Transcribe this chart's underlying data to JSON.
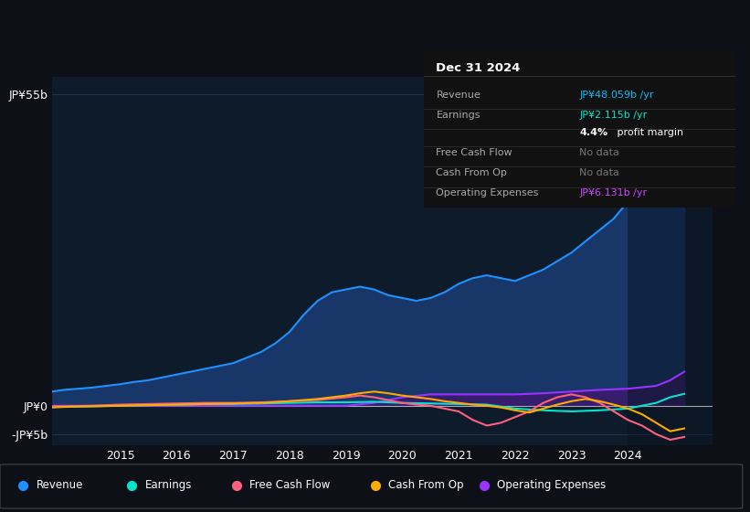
{
  "background_color": "#0d1117",
  "plot_bg_color": "#0d1b2a",
  "ylim": [
    -7,
    58
  ],
  "yticks": [
    -5,
    0,
    55
  ],
  "ytick_labels": [
    "-JP¥5b",
    "JP¥0",
    "JP¥55b"
  ],
  "xticks": [
    2015,
    2016,
    2017,
    2018,
    2019,
    2020,
    2021,
    2022,
    2023,
    2024
  ],
  "xlim": [
    2013.8,
    2025.5
  ],
  "info_panel": {
    "title": "Dec 31 2024",
    "rows": [
      {
        "label": "Revenue",
        "value": "JP¥48.059b /yr",
        "value_color": "#00bfff",
        "gray": false,
        "bold_prefix": null
      },
      {
        "label": "Earnings",
        "value": "JP¥2.115b /yr",
        "value_color": "#00e5cc",
        "gray": false,
        "bold_prefix": null
      },
      {
        "label": "",
        "value": " profit margin",
        "value_color": "#ffffff",
        "gray": false,
        "bold_prefix": "4.4%"
      },
      {
        "label": "Free Cash Flow",
        "value": "No data",
        "value_color": "#777777",
        "gray": true,
        "bold_prefix": null
      },
      {
        "label": "Cash From Op",
        "value": "No data",
        "value_color": "#777777",
        "gray": true,
        "bold_prefix": null
      },
      {
        "label": "Operating Expenses",
        "value": "JP¥6.131b /yr",
        "value_color": "#cc44ff",
        "gray": false,
        "bold_prefix": null
      }
    ]
  },
  "series": {
    "revenue": {
      "color": "#1e90ff",
      "fill_color": "#1a3a6e",
      "label": "Revenue",
      "x": [
        2013.8,
        2014.0,
        2014.25,
        2014.5,
        2014.75,
        2015.0,
        2015.25,
        2015.5,
        2015.75,
        2016.0,
        2016.25,
        2016.5,
        2016.75,
        2017.0,
        2017.25,
        2017.5,
        2017.75,
        2018.0,
        2018.25,
        2018.5,
        2018.75,
        2019.0,
        2019.25,
        2019.5,
        2019.75,
        2020.0,
        2020.25,
        2020.5,
        2020.75,
        2021.0,
        2021.25,
        2021.5,
        2021.75,
        2022.0,
        2022.25,
        2022.5,
        2022.75,
        2023.0,
        2023.25,
        2023.5,
        2023.75,
        2024.0,
        2024.25,
        2024.5,
        2024.75,
        2025.0
      ],
      "y": [
        2.5,
        2.8,
        3.0,
        3.2,
        3.5,
        3.8,
        4.2,
        4.5,
        5.0,
        5.5,
        6.0,
        6.5,
        7.0,
        7.5,
        8.5,
        9.5,
        11.0,
        13.0,
        16.0,
        18.5,
        20.0,
        20.5,
        21.0,
        20.5,
        19.5,
        19.0,
        18.5,
        19.0,
        20.0,
        21.5,
        22.5,
        23.0,
        22.5,
        22.0,
        23.0,
        24.0,
        25.5,
        27.0,
        29.0,
        31.0,
        33.0,
        36.0,
        39.0,
        44.0,
        50.0,
        48.0
      ]
    },
    "earnings": {
      "color": "#00e5cc",
      "label": "Earnings",
      "x": [
        2013.8,
        2014.0,
        2014.5,
        2015.0,
        2015.5,
        2016.0,
        2016.5,
        2017.0,
        2017.5,
        2018.0,
        2018.5,
        2019.0,
        2019.5,
        2020.0,
        2020.5,
        2021.0,
        2021.5,
        2022.0,
        2022.5,
        2023.0,
        2023.5,
        2024.0,
        2024.5,
        2024.75,
        2025.0
      ],
      "y": [
        -0.2,
        -0.2,
        -0.1,
        0.0,
        0.1,
        0.2,
        0.3,
        0.3,
        0.4,
        0.5,
        0.6,
        0.6,
        0.7,
        0.5,
        0.4,
        0.3,
        0.2,
        -0.5,
        -0.8,
        -1.0,
        -0.8,
        -0.5,
        0.5,
        1.5,
        2.1
      ]
    },
    "free_cash_flow": {
      "color": "#ff6080",
      "label": "Free Cash Flow",
      "x": [
        2013.8,
        2014.0,
        2014.5,
        2015.0,
        2015.5,
        2016.0,
        2016.5,
        2017.0,
        2017.5,
        2018.0,
        2018.5,
        2019.0,
        2019.25,
        2019.5,
        2019.75,
        2020.0,
        2020.25,
        2020.5,
        2020.75,
        2021.0,
        2021.25,
        2021.5,
        2021.75,
        2022.0,
        2022.25,
        2022.5,
        2022.75,
        2023.0,
        2023.25,
        2023.5,
        2023.75,
        2024.0,
        2024.25,
        2024.5,
        2024.75,
        2025.0
      ],
      "y": [
        -0.1,
        -0.1,
        0.0,
        0.2,
        0.3,
        0.4,
        0.5,
        0.5,
        0.6,
        0.8,
        1.0,
        1.5,
        1.8,
        1.5,
        1.0,
        0.5,
        0.2,
        0.0,
        -0.5,
        -1.0,
        -2.5,
        -3.5,
        -3.0,
        -2.0,
        -1.0,
        0.5,
        1.5,
        2.0,
        1.5,
        0.5,
        -1.0,
        -2.5,
        -3.5,
        -5.0,
        -6.0,
        -5.5
      ]
    },
    "cash_from_op": {
      "color": "#ffaa00",
      "label": "Cash From Op",
      "x": [
        2013.8,
        2014.0,
        2014.5,
        2015.0,
        2015.5,
        2016.0,
        2016.5,
        2017.0,
        2017.5,
        2018.0,
        2018.5,
        2019.0,
        2019.25,
        2019.5,
        2019.75,
        2020.0,
        2020.25,
        2020.5,
        2020.75,
        2021.0,
        2021.25,
        2021.5,
        2021.75,
        2022.0,
        2022.25,
        2022.5,
        2022.75,
        2023.0,
        2023.25,
        2023.5,
        2023.75,
        2024.0,
        2024.25,
        2024.5,
        2024.75,
        2025.0
      ],
      "y": [
        -0.3,
        -0.2,
        -0.1,
        0.0,
        0.1,
        0.2,
        0.3,
        0.4,
        0.5,
        0.8,
        1.2,
        1.8,
        2.2,
        2.5,
        2.2,
        1.8,
        1.5,
        1.2,
        0.8,
        0.5,
        0.2,
        0.0,
        -0.3,
        -0.8,
        -1.2,
        -0.5,
        0.2,
        0.8,
        1.2,
        0.8,
        0.2,
        -0.5,
        -1.5,
        -3.0,
        -4.5,
        -4.0
      ]
    },
    "operating_expenses": {
      "color": "#9933ff",
      "label": "Operating Expenses",
      "x": [
        2013.8,
        2014.0,
        2014.5,
        2015.0,
        2015.5,
        2016.0,
        2016.5,
        2017.0,
        2017.5,
        2018.0,
        2018.5,
        2019.0,
        2019.5,
        2020.0,
        2020.5,
        2021.0,
        2021.5,
        2022.0,
        2022.5,
        2023.0,
        2023.5,
        2024.0,
        2024.5,
        2024.75,
        2025.0
      ],
      "y": [
        0.0,
        0.0,
        0.0,
        0.0,
        0.0,
        0.0,
        0.0,
        0.0,
        0.0,
        0.0,
        0.0,
        0.0,
        0.5,
        1.5,
        2.0,
        2.0,
        2.0,
        2.0,
        2.2,
        2.5,
        2.8,
        3.0,
        3.5,
        4.5,
        6.0
      ]
    }
  },
  "legend_items": [
    {
      "label": "Revenue",
      "color": "#1e90ff"
    },
    {
      "label": "Earnings",
      "color": "#00e5cc"
    },
    {
      "label": "Free Cash Flow",
      "color": "#ff6080"
    },
    {
      "label": "Cash From Op",
      "color": "#ffaa00"
    },
    {
      "label": "Operating Expenses",
      "color": "#9933ff"
    }
  ]
}
